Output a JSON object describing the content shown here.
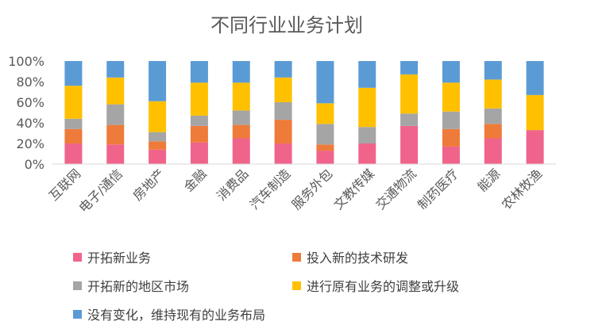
{
  "chart_data": {
    "type": "bar",
    "stacked": "percent",
    "title": "不同行业业务计划",
    "categories": [
      "互联网",
      "电子/通信",
      "房地产",
      "金融",
      "消费品",
      "汽车制造",
      "服务外包",
      "文教传媒",
      "交通物流",
      "制药医疗",
      "能源",
      "农林牧渔"
    ],
    "y_ticks": [
      "0%",
      "20%",
      "40%",
      "60%",
      "80%",
      "100%"
    ],
    "ylim": [
      0,
      100
    ],
    "grid": false,
    "legend_position": "bottom",
    "series": [
      {
        "name": "开拓新业务",
        "color": "#F0648C",
        "values": [
          20,
          19,
          14,
          21,
          25,
          20,
          13,
          20,
          37,
          17,
          25,
          33
        ]
      },
      {
        "name": "投入新的技术研发",
        "color": "#EE7B3A",
        "values": [
          14,
          19,
          8,
          16,
          13,
          23,
          6,
          0,
          0,
          17,
          14,
          0
        ]
      },
      {
        "name": "开拓新的地区市场",
        "color": "#A5A5A5",
        "values": [
          10,
          20,
          9,
          10,
          14,
          17,
          20,
          16,
          12,
          17,
          15,
          0
        ]
      },
      {
        "name": "进行原有业务的调整或升级",
        "color": "#FFC000",
        "values": [
          32,
          26,
          30,
          32,
          27,
          24,
          20,
          38,
          38,
          28,
          28,
          34
        ]
      },
      {
        "name": "没有变化，维持现有的业务布局",
        "color": "#5B9BD5",
        "values": [
          24,
          16,
          39,
          21,
          21,
          16,
          41,
          26,
          13,
          21,
          18,
          33
        ]
      }
    ]
  }
}
